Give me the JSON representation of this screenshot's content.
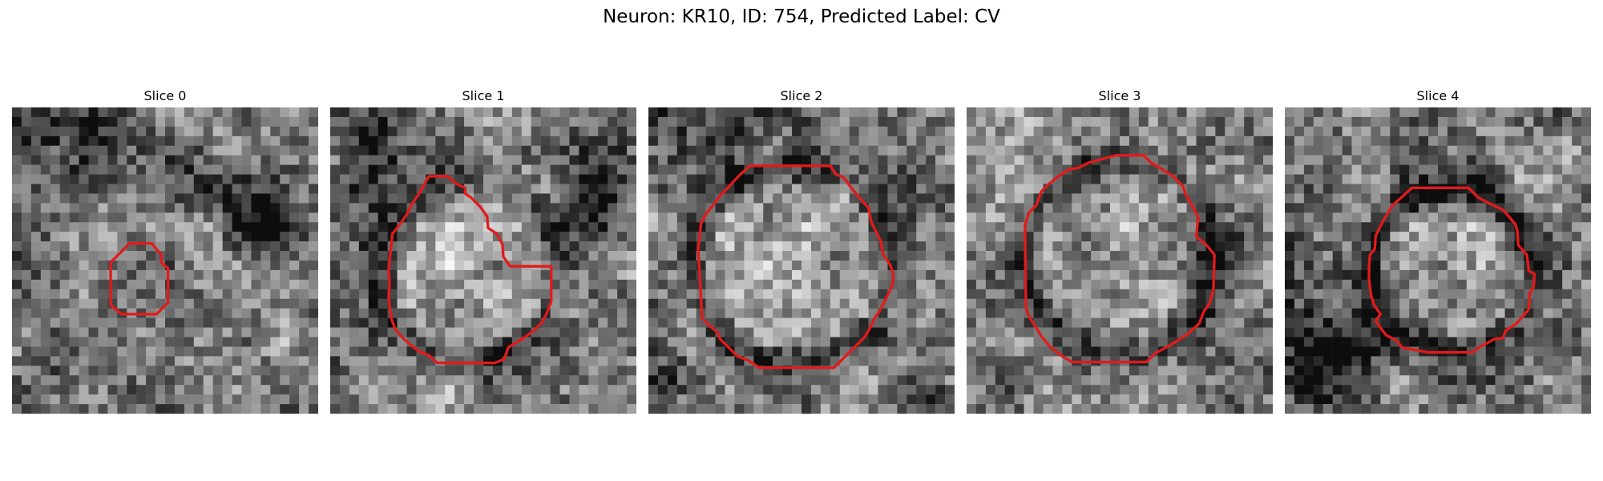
{
  "title": "Neuron: KR10, ID: 754, Predicted Label: CV",
  "panels": [
    {
      "title": "Slice 0",
      "contour_color": "#e11b1b"
    },
    {
      "title": "Slice 1",
      "contour_color": "#e11b1b"
    },
    {
      "title": "Slice 2",
      "contour_color": "#e11b1b"
    },
    {
      "title": "Slice 3",
      "contour_color": "#e11b1b"
    },
    {
      "title": "Slice 4",
      "contour_color": "#e11b1b"
    }
  ]
}
